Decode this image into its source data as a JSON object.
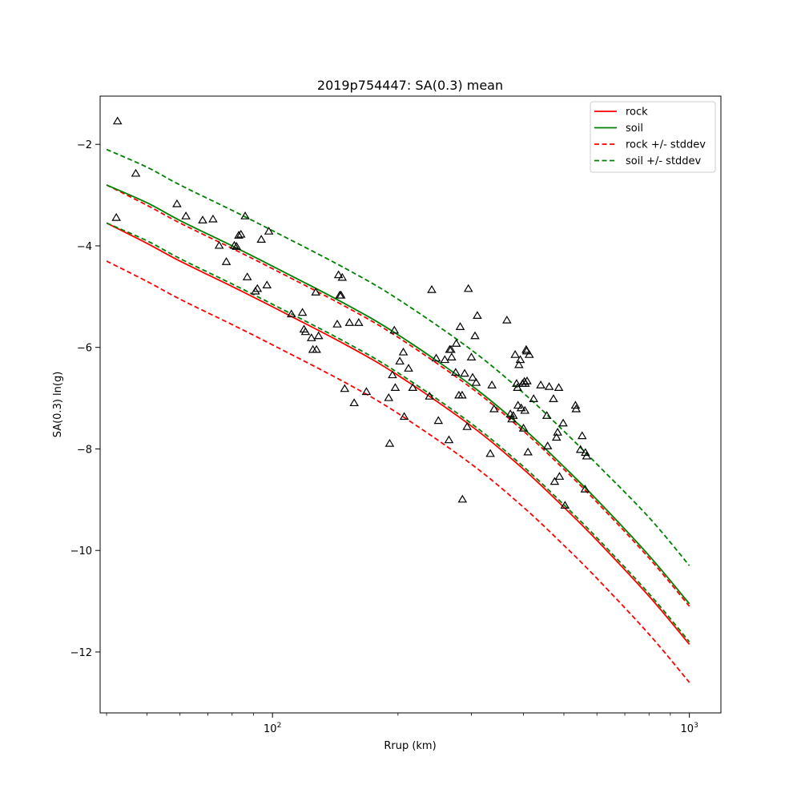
{
  "chart_data": {
    "type": "scatter",
    "title": "2019p754447: SA(0.3) mean",
    "xlabel": "Rrup (km)",
    "ylabel": "SA(0.3) ln(g)",
    "xscale": "log",
    "xlim": [
      38.6,
      1190
    ],
    "ylim": [
      -13.2,
      -1.05
    ],
    "grid": false,
    "legend_position": "top-right",
    "x_tick_labels": [
      "10^2",
      "10^3"
    ],
    "y_ticks": [
      -2,
      -4,
      -6,
      -8,
      -10,
      -12
    ],
    "y_tick_labels": [
      "−2",
      "−4",
      "−6",
      "−8",
      "−10",
      "−12"
    ],
    "legend": [
      {
        "label": "rock",
        "color": "#ff0000",
        "style": "solid"
      },
      {
        "label": "soil",
        "color": "#008000",
        "style": "solid"
      },
      {
        "label": "rock +/- stddev",
        "color": "#ff0000",
        "style": "dashed"
      },
      {
        "label": "soil +/- stddev",
        "color": "#008000",
        "style": "dashed"
      }
    ],
    "curve_x": [
      40,
      50,
      60,
      80,
      100,
      150,
      200,
      300,
      400,
      500,
      600,
      800,
      1000
    ],
    "series": [
      {
        "name": "rock",
        "color": "#ff0000",
        "style": "solid",
        "values": [
          -3.55,
          -3.95,
          -4.3,
          -4.8,
          -5.2,
          -5.95,
          -6.55,
          -7.55,
          -8.4,
          -9.15,
          -9.8,
          -10.9,
          -11.85
        ]
      },
      {
        "name": "rock +/- stddev",
        "color": "#ff0000",
        "style": "dashed",
        "values": [
          -2.8,
          -3.2,
          -3.55,
          -4.05,
          -4.45,
          -5.2,
          -5.8,
          -6.8,
          -7.65,
          -8.4,
          -9.05,
          -10.15,
          -11.1
        ]
      },
      {
        "name": "rock +/- stddev",
        "color": "#ff0000",
        "style": "dashed",
        "values": [
          -4.3,
          -4.7,
          -5.05,
          -5.55,
          -5.95,
          -6.7,
          -7.3,
          -8.3,
          -9.15,
          -9.9,
          -10.55,
          -11.65,
          -12.6
        ]
      },
      {
        "name": "soil",
        "color": "#008000",
        "style": "solid",
        "values": [
          -2.8,
          -3.15,
          -3.5,
          -4.0,
          -4.4,
          -5.15,
          -5.75,
          -6.75,
          -7.6,
          -8.35,
          -9.0,
          -10.1,
          -11.05
        ]
      },
      {
        "name": "soil +/- stddev",
        "color": "#008000",
        "style": "dashed",
        "values": [
          -2.1,
          -2.45,
          -2.8,
          -3.3,
          -3.7,
          -4.45,
          -5.05,
          -6.05,
          -6.9,
          -7.65,
          -8.3,
          -9.35,
          -10.3
        ]
      },
      {
        "name": "soil +/- stddev",
        "color": "#008000",
        "style": "dashed",
        "values": [
          -3.55,
          -3.9,
          -4.25,
          -4.75,
          -5.15,
          -5.9,
          -6.5,
          -7.5,
          -8.35,
          -9.1,
          -9.75,
          -10.85,
          -11.8
        ]
      }
    ],
    "observations": {
      "marker": "triangle",
      "points": [
        [
          42.5,
          -1.55
        ],
        [
          42.2,
          -3.45
        ],
        [
          47,
          -2.58
        ],
        [
          59,
          -3.18
        ],
        [
          62,
          -3.42
        ],
        [
          68,
          -3.5
        ],
        [
          72,
          -3.48
        ],
        [
          74.5,
          -4.0
        ],
        [
          77.5,
          -4.32
        ],
        [
          81,
          -4.0
        ],
        [
          82,
          -4.02
        ],
        [
          83,
          -3.8
        ],
        [
          84,
          -3.78
        ],
        [
          86,
          -3.42
        ],
        [
          87,
          -4.62
        ],
        [
          91,
          -4.9
        ],
        [
          92,
          -4.85
        ],
        [
          94,
          -3.88
        ],
        [
          97,
          -4.78
        ],
        [
          98,
          -3.72
        ],
        [
          111,
          -5.35
        ],
        [
          118,
          -5.32
        ],
        [
          119,
          -5.65
        ],
        [
          120,
          -5.7
        ],
        [
          124,
          -5.82
        ],
        [
          125,
          -6.05
        ],
        [
          127,
          -4.92
        ],
        [
          127.5,
          -6.05
        ],
        [
          129,
          -5.78
        ],
        [
          143,
          -5.55
        ],
        [
          144,
          -4.58
        ],
        [
          145,
          -4.98
        ],
        [
          146,
          -4.98
        ],
        [
          147,
          -4.63
        ],
        [
          149,
          -6.82
        ],
        [
          153,
          -5.52
        ],
        [
          157,
          -7.1
        ],
        [
          161,
          -5.52
        ],
        [
          168,
          -6.88
        ],
        [
          190,
          -7.0
        ],
        [
          191,
          -7.9
        ],
        [
          194,
          -6.55
        ],
        [
          196,
          -5.67
        ],
        [
          197,
          -6.8
        ],
        [
          202,
          -6.28
        ],
        [
          206,
          -6.1
        ],
        [
          207,
          -7.37
        ],
        [
          212,
          -6.42
        ],
        [
          217,
          -6.8
        ],
        [
          238,
          -6.97
        ],
        [
          241,
          -4.87
        ],
        [
          247,
          -6.22
        ],
        [
          250,
          -7.45
        ],
        [
          259,
          -6.25
        ],
        [
          265,
          -7.83
        ],
        [
          266,
          -6.05
        ],
        [
          268,
          -6.05
        ],
        [
          269,
          -6.2
        ],
        [
          275,
          -6.5
        ],
        [
          276,
          -5.93
        ],
        [
          280,
          -6.95
        ],
        [
          282,
          -5.6
        ],
        [
          285,
          -6.95
        ],
        [
          285.5,
          -9.0
        ],
        [
          289,
          -6.52
        ],
        [
          293,
          -7.57
        ],
        [
          295,
          -4.85
        ],
        [
          300,
          -6.2
        ],
        [
          302,
          -6.6
        ],
        [
          306,
          -5.78
        ],
        [
          308,
          -6.7
        ],
        [
          310,
          -5.38
        ],
        [
          333,
          -8.1
        ],
        [
          336,
          -6.75
        ],
        [
          340,
          -7.22
        ],
        [
          365,
          -5.47
        ],
        [
          372,
          -7.32
        ],
        [
          375,
          -7.42
        ],
        [
          378,
          -7.35
        ],
        [
          382,
          -6.15
        ],
        [
          385,
          -6.72
        ],
        [
          387,
          -6.8
        ],
        [
          388,
          -7.15
        ],
        [
          390,
          -6.35
        ],
        [
          393,
          -6.25
        ],
        [
          395,
          -7.2
        ],
        [
          398,
          -6.72
        ],
        [
          400,
          -7.6
        ],
        [
          402,
          -6.68
        ],
        [
          403,
          -7.25
        ],
        [
          404,
          -6.72
        ],
        [
          406,
          -6.05
        ],
        [
          407,
          -6.08
        ],
        [
          408,
          -6.67
        ],
        [
          410,
          -8.07
        ],
        [
          413,
          -6.15
        ],
        [
          423,
          -7.02
        ],
        [
          440,
          -6.75
        ],
        [
          455,
          -7.35
        ],
        [
          457,
          -7.95
        ],
        [
          461,
          -6.78
        ],
        [
          472,
          -7.02
        ],
        [
          475,
          -8.65
        ],
        [
          480,
          -7.78
        ],
        [
          483,
          -7.68
        ],
        [
          486,
          -6.8
        ],
        [
          488,
          -8.55
        ],
        [
          498,
          -7.5
        ],
        [
          503,
          -9.12
        ],
        [
          533,
          -7.15
        ],
        [
          535,
          -7.22
        ],
        [
          548,
          -8.02
        ],
        [
          553,
          -7.75
        ],
        [
          562,
          -8.8
        ],
        [
          563,
          -8.08
        ],
        [
          567,
          -8.15
        ]
      ]
    }
  }
}
